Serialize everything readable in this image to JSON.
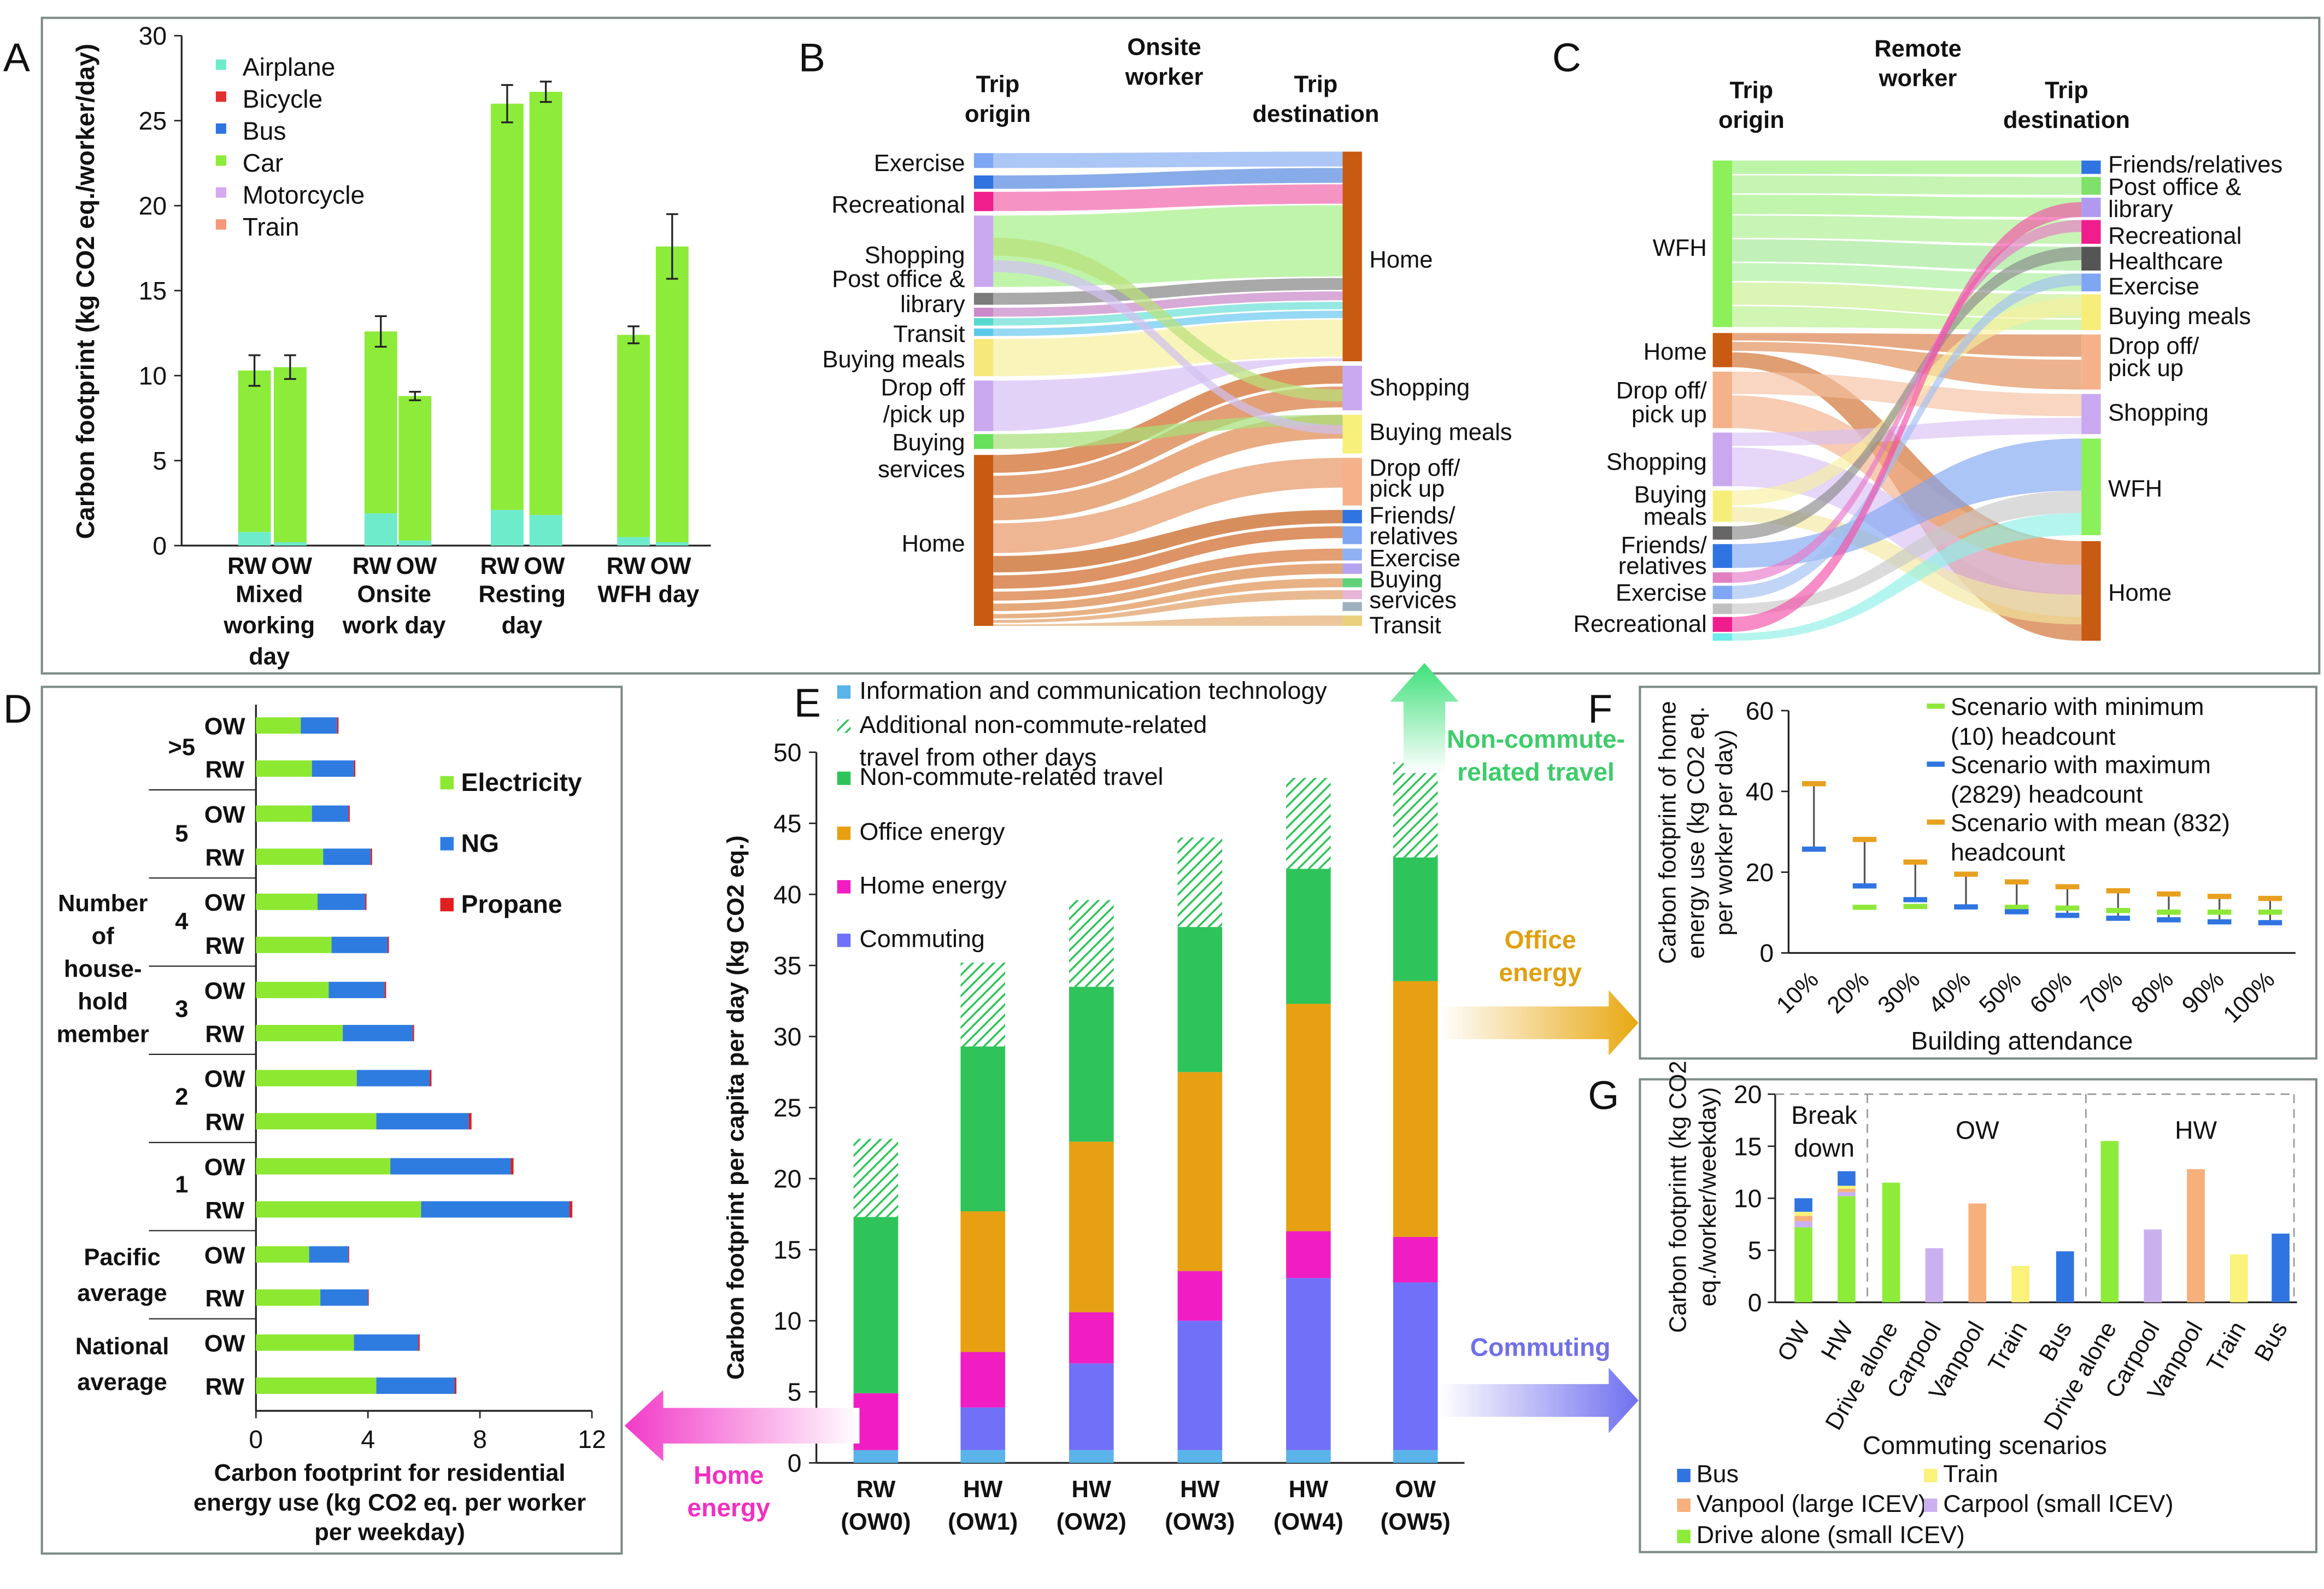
{
  "panel_labels": {
    "a": "A",
    "b": "B",
    "c": "C",
    "d": "D",
    "e": "E",
    "f": "F",
    "g": "G"
  },
  "colors": {
    "airplane": "#6EEBCB",
    "bicycle": "#E03030",
    "bus": "#2F74E0",
    "car": "#8DEB3A",
    "motorcycle": "#D6A8F0",
    "train": "#F4997A",
    "ict": "#5AB4EA",
    "noncommute": "#2EC45A",
    "office": "#E6A012",
    "home": "#F01EC2",
    "commuting": "#7070F8",
    "ng": "#2E7CE0",
    "propane": "#E02020",
    "electricity": "#8DE832",
    "min": "#8EE83A",
    "max": "#2F74E0",
    "mean": "#E8A020",
    "green_arrow": "#3EE07A",
    "office_arrow": "#E8A812",
    "home_arrow": "#F23AC8",
    "commute_arrow": "#7070F0"
  },
  "chart_data": [
    {
      "panel": "A",
      "type": "bar",
      "stacked": true,
      "ylabel": "Carbon footprint (kg CO2 eq./worker/day)",
      "ylim": [
        0,
        30
      ],
      "yticks": [
        "0",
        "5",
        "10",
        "15",
        "20",
        "25",
        "30"
      ],
      "groups": [
        "Mixed working day",
        "Onsite work day",
        "Resting day",
        "WFH day"
      ],
      "group_labels": [
        [
          "Mixed",
          "working",
          "day"
        ],
        [
          "Onsite",
          "work day"
        ],
        [
          "Resting",
          "day"
        ],
        [
          "WFH day"
        ]
      ],
      "bar_labels": [
        "RW",
        "OW"
      ],
      "legend": [
        "Airplane",
        "Bicycle",
        "Bus",
        "Car",
        "Motorcycle",
        "Train"
      ],
      "bars": [
        {
          "group": 0,
          "label": "RW",
          "airplane": 0.8,
          "car": 9.5,
          "total": 10.3,
          "err": 0.9
        },
        {
          "group": 0,
          "label": "OW",
          "airplane": 0.2,
          "car": 10.3,
          "total": 10.5,
          "err": 0.7
        },
        {
          "group": 1,
          "label": "RW",
          "airplane": 1.9,
          "car": 10.7,
          "total": 12.6,
          "err": 0.9
        },
        {
          "group": 1,
          "label": "OW",
          "airplane": 0.3,
          "car": 8.5,
          "total": 8.8,
          "err": 0.25
        },
        {
          "group": 2,
          "label": "RW",
          "airplane": 2.1,
          "car": 23.9,
          "total": 26.0,
          "err": 1.1
        },
        {
          "group": 2,
          "label": "OW",
          "airplane": 1.8,
          "car": 24.9,
          "total": 26.7,
          "err": 0.6
        },
        {
          "group": 3,
          "label": "RW",
          "airplane": 0.5,
          "car": 11.9,
          "total": 12.4,
          "err": 0.5
        },
        {
          "group": 3,
          "label": "OW",
          "airplane": 0.2,
          "car": 17.4,
          "total": 17.6,
          "err": 1.9
        }
      ]
    },
    {
      "panel": "B",
      "type": "sankey",
      "title": [
        "Onsite",
        "worker"
      ],
      "origin_header": [
        "Trip",
        "origin"
      ],
      "dest_header": [
        "Trip",
        "destination"
      ],
      "origin_labels": [
        [
          "Exercise"
        ],
        [
          "Recreational"
        ],
        [
          "Shopping",
          "Post office &",
          "library"
        ],
        [
          "Transit"
        ],
        [
          "Buying meals"
        ],
        [
          "Drop off",
          "/pick up"
        ],
        [
          "Buying",
          "services"
        ],
        [
          "Home"
        ]
      ],
      "dest_labels": [
        [
          "Home"
        ],
        [
          "Shopping"
        ],
        [
          "Buying meals"
        ],
        [
          "Drop off/",
          "pick up"
        ],
        [
          "Friends/",
          "relatives"
        ],
        [
          "Exercise"
        ],
        [
          "Buying",
          "services"
        ],
        [
          "Transit"
        ]
      ]
    },
    {
      "panel": "C",
      "type": "sankey",
      "title": [
        "Remote",
        "worker"
      ],
      "origin_header": [
        "Trip",
        "origin"
      ],
      "dest_header": [
        "Trip",
        "destination"
      ],
      "origin_labels": [
        [
          "WFH"
        ],
        [
          "Home"
        ],
        [
          "Drop off/",
          "pick up"
        ],
        [
          "Shopping"
        ],
        [
          "Buying",
          "meals"
        ],
        [
          "Friends/",
          "relatives"
        ],
        [
          "Exercise"
        ],
        [
          "Recreational"
        ]
      ],
      "dest_labels": [
        [
          "Friends/relatives"
        ],
        [
          "Post office &",
          "library"
        ],
        [
          "Recreational"
        ],
        [
          "Healthcare"
        ],
        [
          "Exercise"
        ],
        [
          "Buying meals"
        ],
        [
          "Drop off/",
          "pick up"
        ],
        [
          "Shopping"
        ],
        [
          "WFH"
        ],
        [
          "Home"
        ]
      ]
    },
    {
      "panel": "D",
      "type": "bar",
      "orientation": "horizontal",
      "stacked": true,
      "xlabel": [
        "Carbon footprint for residential",
        "energy use (kg CO2 eq. per worker",
        "per weekday)"
      ],
      "xlim": [
        0,
        12
      ],
      "xticks": [
        "0",
        "4",
        "8",
        "12"
      ],
      "ylabel": [
        "Number",
        "of",
        "house-",
        "hold",
        "member"
      ],
      "legend": [
        "Electricity",
        "NG",
        "Propane"
      ],
      "groups": [
        {
          "label": [
            ">5"
          ],
          "rows": [
            {
              "label": "OW",
              "electricity": 1.6,
              "ng": 1.3,
              "propane": 0.05
            },
            {
              "label": "RW",
              "electricity": 2.0,
              "ng": 1.5,
              "propane": 0.05
            }
          ]
        },
        {
          "label": [
            "5"
          ],
          "rows": [
            {
              "label": "OW",
              "electricity": 2.0,
              "ng": 1.3,
              "propane": 0.05
            },
            {
              "label": "RW",
              "electricity": 2.4,
              "ng": 1.7,
              "propane": 0.05
            }
          ]
        },
        {
          "label": [
            "4"
          ],
          "rows": [
            {
              "label": "OW",
              "electricity": 2.2,
              "ng": 1.7,
              "propane": 0.05
            },
            {
              "label": "RW",
              "electricity": 2.7,
              "ng": 2.0,
              "propane": 0.05
            }
          ]
        },
        {
          "label": [
            "3"
          ],
          "rows": [
            {
              "label": "OW",
              "electricity": 2.6,
              "ng": 2.0,
              "propane": 0.05
            },
            {
              "label": "RW",
              "electricity": 3.1,
              "ng": 2.5,
              "propane": 0.05
            }
          ]
        },
        {
          "label": [
            "2"
          ],
          "rows": [
            {
              "label": "OW",
              "electricity": 3.6,
              "ng": 2.6,
              "propane": 0.07
            },
            {
              "label": "RW",
              "electricity": 4.3,
              "ng": 3.3,
              "propane": 0.1
            }
          ]
        },
        {
          "label": [
            "1"
          ],
          "rows": [
            {
              "label": "OW",
              "electricity": 4.8,
              "ng": 4.3,
              "propane": 0.1
            },
            {
              "label": "RW",
              "electricity": 5.9,
              "ng": 5.3,
              "propane": 0.1
            }
          ]
        },
        {
          "label": [
            "Pacific",
            "average"
          ],
          "rows": [
            {
              "label": "OW",
              "electricity": 1.9,
              "ng": 1.4,
              "propane": 0.03
            },
            {
              "label": "RW",
              "electricity": 2.3,
              "ng": 1.7,
              "propane": 0.03
            }
          ]
        },
        {
          "label": [
            "National",
            "average"
          ],
          "rows": [
            {
              "label": "OW",
              "electricity": 3.5,
              "ng": 2.3,
              "propane": 0.05
            },
            {
              "label": "RW",
              "electricity": 4.3,
              "ng": 2.8,
              "propane": 0.06
            }
          ]
        }
      ]
    },
    {
      "panel": "E",
      "type": "bar",
      "stacked": true,
      "ylabel": "Carbon footprint per capita per day (kg CO2 eq.)",
      "ylim": [
        0,
        50
      ],
      "yticks": [
        "0",
        "5",
        "10",
        "15",
        "20",
        "25",
        "30",
        "35",
        "40",
        "45",
        "50"
      ],
      "categories": [
        [
          "RW",
          "(OW0)"
        ],
        [
          "HW",
          "(OW1)"
        ],
        [
          "HW",
          "(OW2)"
        ],
        [
          "HW",
          "(OW3)"
        ],
        [
          "HW",
          "(OW4)"
        ],
        [
          "OW",
          "(OW5)"
        ]
      ],
      "legend": [
        [
          "Information and communication technology"
        ],
        [
          "Additional non-commute-related",
          "travel from other days"
        ],
        [
          "Non-commute-related travel"
        ],
        [
          "Office energy"
        ],
        [
          "Home energy"
        ],
        [
          "Commuting"
        ]
      ],
      "series": [
        {
          "name": "Information and communication technology",
          "values": [
            0.9,
            0.9,
            0.9,
            0.9,
            0.9,
            0.9
          ]
        },
        {
          "name": "Commuting",
          "values": [
            0.0,
            3.0,
            6.1,
            9.1,
            12.1,
            11.8
          ]
        },
        {
          "name": "Home energy",
          "values": [
            4.0,
            3.9,
            3.6,
            3.5,
            3.3,
            3.2
          ]
        },
        {
          "name": "Office energy",
          "values": [
            0.0,
            9.9,
            12.0,
            14.0,
            16.0,
            18.0
          ]
        },
        {
          "name": "Non-commute-related travel",
          "values": [
            12.4,
            11.6,
            10.9,
            10.2,
            9.5,
            8.7
          ]
        },
        {
          "name": "Additional non-commute-related travel from other days",
          "values": [
            5.5,
            5.9,
            6.1,
            6.3,
            6.4,
            6.7
          ]
        }
      ],
      "totals": [
        22.8,
        35.2,
        39.6,
        43.9,
        48.2,
        49.3
      ]
    },
    {
      "panel": "F",
      "type": "scatter",
      "ylabel": [
        "Carbon footprint of home",
        "energy use (kg CO2 eq.",
        "per worker per day)"
      ],
      "xlabel": "Building attendance",
      "ylim": [
        0,
        60
      ],
      "yticks": [
        "0",
        "20",
        "40",
        "60"
      ],
      "x": [
        "10%",
        "20%",
        "30%",
        "40%",
        "50%",
        "60%",
        "70%",
        "80%",
        "90%",
        "100%"
      ],
      "legend": [
        [
          "Scenario with minimum",
          "(10) headcount"
        ],
        [
          "Scenario with maximum",
          "(2829) headcount"
        ],
        [
          "Scenario with mean (832)",
          "headcount"
        ]
      ],
      "series": [
        {
          "name": "Scenario with minimum (10) headcount",
          "values": [
            null,
            11.3,
            11.5,
            null,
            11.3,
            11.1,
            10.5,
            10.1,
            10.1,
            10.1
          ]
        },
        {
          "name": "Scenario with maximum (2829) headcount",
          "values": [
            25.7,
            16.6,
            13.2,
            11.4,
            10.2,
            9.3,
            8.6,
            8.2,
            7.7,
            7.5
          ]
        },
        {
          "name": "Scenario with mean (832) headcount",
          "values": [
            41.9,
            28.1,
            22.5,
            19.5,
            17.6,
            16.4,
            15.4,
            14.6,
            14.0,
            13.5
          ]
        }
      ]
    },
    {
      "panel": "G",
      "type": "bar",
      "ylabel": [
        "Carbon footprintt (kg CO2",
        "eq./worker/weekday)"
      ],
      "xlabel": "Commuting scenarios",
      "ylim": [
        0,
        20
      ],
      "yticks": [
        "0",
        "5",
        "10",
        "15",
        "20"
      ],
      "sections": [
        [
          "Break",
          "down"
        ],
        [
          "OW"
        ],
        [
          "HW"
        ]
      ],
      "categories": [
        "OW",
        "HW",
        "Drive alone",
        "Carpool",
        "Vanpool",
        "Train",
        "Bus",
        "Drive alone",
        "Carpool",
        "Vanpool",
        "Train",
        "Bus"
      ],
      "breakdown": [
        {
          "label": "OW",
          "drive": 7.2,
          "carpool": 0.6,
          "vanpool": 0.5,
          "train": 0.4,
          "bus": 1.3
        },
        {
          "label": "HW",
          "drive": 10.2,
          "carpool": 0.4,
          "vanpool": 0.3,
          "train": 0.3,
          "bus": 1.4
        }
      ],
      "scenarios": [
        {
          "label": "Drive alone",
          "value": 11.5,
          "mode": "drive"
        },
        {
          "label": "Carpool",
          "value": 5.2,
          "mode": "carpool"
        },
        {
          "label": "Vanpool",
          "value": 9.5,
          "mode": "vanpool"
        },
        {
          "label": "Train",
          "value": 3.5,
          "mode": "train"
        },
        {
          "label": "Bus",
          "value": 4.9,
          "mode": "bus"
        },
        {
          "label": "Drive alone",
          "value": 15.5,
          "mode": "drive"
        },
        {
          "label": "Carpool",
          "value": 7.0,
          "mode": "carpool"
        },
        {
          "label": "Vanpool",
          "value": 12.8,
          "mode": "vanpool"
        },
        {
          "label": "Train",
          "value": 4.6,
          "mode": "train"
        },
        {
          "label": "Bus",
          "value": 6.6,
          "mode": "bus"
        }
      ],
      "legend": [
        "Bus",
        "Train",
        "Vanpool (large ICEV)",
        "Carpool (small ICEV)",
        "Drive alone (small ICEV)"
      ],
      "mode_colors": {
        "drive": "#8DEB3A",
        "carpool": "#CBB0F0",
        "vanpool": "#F6B07C",
        "train": "#FAF27A",
        "bus": "#2F74E0"
      }
    }
  ],
  "arrows": {
    "noncommute": [
      "Non-commute-",
      "related travel"
    ],
    "office": [
      "Office",
      "energy"
    ],
    "commuting": [
      "Commuting"
    ],
    "home": [
      "Home",
      "energy"
    ]
  }
}
